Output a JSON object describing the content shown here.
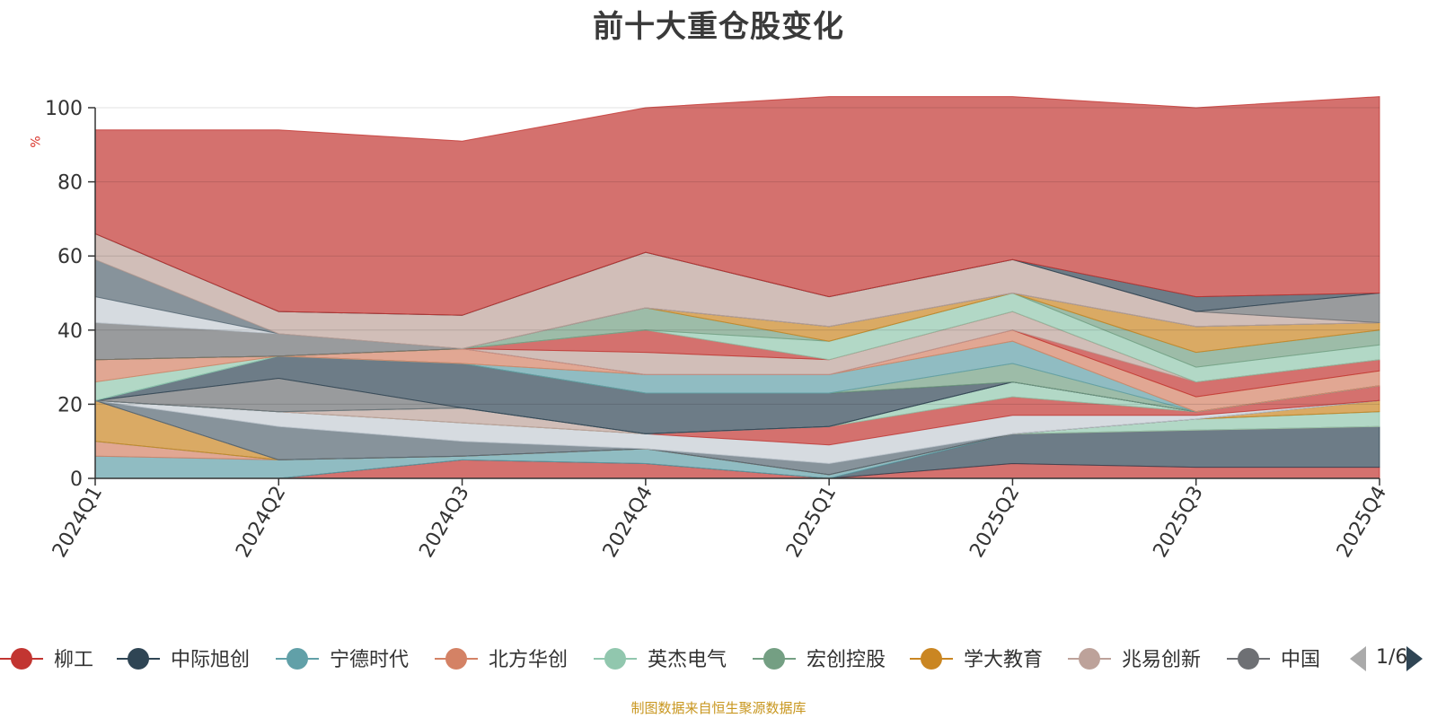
{
  "chart_data": {
    "type": "area",
    "title": "前十大重仓股变化",
    "ylabel": "%",
    "ylim": [
      0,
      100
    ],
    "y_ticks": [
      0,
      20,
      40,
      60,
      80,
      100
    ],
    "x": [
      "2024Q1",
      "2024Q2",
      "2024Q3",
      "2024Q4",
      "2025Q1",
      "2025Q2",
      "2025Q3",
      "2025Q4"
    ],
    "grid": true,
    "legend_position": "bottom",
    "series": [
      {
        "name": "柳工",
        "color": "#c23531",
        "values": [
          0,
          0,
          5,
          4,
          0,
          4,
          3,
          3
        ]
      },
      {
        "name": "中际旭创",
        "color": "#2f4554",
        "values": [
          0,
          0,
          0,
          0,
          0,
          8,
          10,
          11
        ]
      },
      {
        "name": "宁德时代",
        "color": "#61a0a8",
        "values": [
          6,
          5,
          1,
          4,
          1,
          0,
          0,
          0
        ]
      },
      {
        "name": "北方华创",
        "color": "#d48265",
        "values": [
          4,
          0,
          0,
          0,
          0,
          0,
          0,
          0
        ]
      },
      {
        "name": "英杰电气",
        "color": "#91c7ae",
        "values": [
          0,
          0,
          0,
          0,
          0,
          0,
          3,
          4
        ]
      },
      {
        "name": "宏创控股",
        "color": "#749f83",
        "values": [
          0,
          0,
          0,
          0,
          0,
          0,
          0,
          0
        ]
      },
      {
        "name": "学大教育",
        "color": "#ca8622",
        "values": [
          11,
          0,
          0,
          0,
          0,
          0,
          0,
          3
        ]
      },
      {
        "name": "兆易创新",
        "color": "#bda29a",
        "values": [
          0,
          0,
          0,
          0,
          0,
          0,
          0,
          0
        ]
      },
      {
        "name": "中国",
        "color": "#6e7074",
        "values": [
          0,
          0,
          0,
          0,
          0,
          0,
          0,
          0
        ]
      },
      {
        "name": "",
        "color": "#546570",
        "values": [
          0,
          9,
          4,
          0,
          3,
          0,
          0,
          0
        ]
      },
      {
        "name": "",
        "color": "#c4ccd3",
        "values": [
          0,
          4,
          5,
          4,
          5,
          5,
          1,
          0
        ]
      },
      {
        "name": "",
        "color": "#c23531",
        "values": [
          0,
          0,
          0,
          0,
          5,
          5,
          1,
          4
        ]
      },
      {
        "name": "",
        "color": "#91c7ae",
        "values": [
          0,
          0,
          0,
          0,
          0,
          4,
          0,
          0
        ]
      },
      {
        "name": "",
        "color": "#bda29a",
        "values": [
          0,
          0,
          4,
          0,
          0,
          0,
          0,
          0
        ]
      },
      {
        "name": "",
        "color": "#6e7074",
        "values": [
          0,
          0,
          0,
          0,
          0,
          0,
          0,
          0
        ]
      },
      {
        "name": "",
        "color": "#61a0a8",
        "values": [
          0,
          0,
          0,
          0,
          0,
          0,
          0,
          0
        ]
      },
      {
        "name": "",
        "color": "#6e7074",
        "values": [
          0,
          9,
          0,
          0,
          0,
          0,
          0,
          0
        ]
      },
      {
        "name": "",
        "color": "#2f4554",
        "values": [
          0,
          6,
          12,
          11,
          9,
          0,
          0,
          0
        ]
      },
      {
        "name": "",
        "color": "#749f83",
        "values": [
          0,
          0,
          0,
          0,
          0,
          5,
          0,
          0
        ]
      },
      {
        "name": "",
        "color": "#61a0a8",
        "values": [
          0,
          0,
          0,
          5,
          5,
          6,
          0,
          0
        ]
      },
      {
        "name": "",
        "color": "#91c7ae",
        "values": [
          5,
          0,
          0,
          0,
          0,
          0,
          0,
          0
        ]
      },
      {
        "name": "",
        "color": "#d48265",
        "values": [
          6,
          0,
          4,
          0,
          0,
          3,
          4,
          4
        ]
      },
      {
        "name": "",
        "color": "#c23531",
        "values": [
          0,
          0,
          0,
          0,
          0,
          0,
          4,
          3
        ]
      },
      {
        "name": "",
        "color": "#bda29a",
        "values": [
          0,
          0,
          0,
          6,
          4,
          5,
          0,
          0
        ]
      },
      {
        "name": "",
        "color": "#c23531",
        "values": [
          0,
          0,
          0,
          6,
          0,
          0,
          0,
          0
        ]
      },
      {
        "name": "",
        "color": "#91c7ae",
        "values": [
          0,
          0,
          0,
          0,
          5,
          5,
          4,
          4
        ]
      },
      {
        "name": "",
        "color": "#749f83",
        "values": [
          0,
          0,
          0,
          6,
          0,
          0,
          4,
          4
        ]
      },
      {
        "name": "",
        "color": "#ca8622",
        "values": [
          0,
          0,
          0,
          0,
          4,
          0,
          7,
          2
        ]
      },
      {
        "name": "",
        "color": "#6e7074",
        "values": [
          10,
          6,
          0,
          0,
          0,
          0,
          0,
          0
        ]
      },
      {
        "name": "",
        "color": "#c4ccd3",
        "values": [
          7,
          0,
          0,
          0,
          0,
          0,
          0,
          0
        ]
      },
      {
        "name": "",
        "color": "#546570",
        "values": [
          10,
          0,
          0,
          0,
          0,
          0,
          0,
          0
        ]
      },
      {
        "name": "",
        "color": "#bda29a",
        "values": [
          7,
          6,
          9,
          15,
          8,
          9,
          4,
          0
        ]
      },
      {
        "name": "",
        "color": "#6e7074",
        "values": [
          0,
          0,
          0,
          0,
          0,
          0,
          0,
          8
        ]
      },
      {
        "name": "",
        "color": "#2f4554",
        "values": [
          0,
          0,
          0,
          0,
          0,
          0,
          4,
          0
        ]
      },
      {
        "name": "",
        "color": "#c23531",
        "values": [
          28,
          49,
          47,
          39,
          54,
          44,
          51,
          53
        ]
      }
    ]
  },
  "legend": {
    "items": [
      {
        "name": "柳工",
        "color": "#c23531"
      },
      {
        "name": "中际旭创",
        "color": "#2f4554"
      },
      {
        "name": "宁德时代",
        "color": "#61a0a8"
      },
      {
        "name": "北方华创",
        "color": "#d48265"
      },
      {
        "name": "英杰电气",
        "color": "#91c7ae"
      },
      {
        "name": "宏创控股",
        "color": "#749f83"
      },
      {
        "name": "学大教育",
        "color": "#ca8622"
      },
      {
        "name": "兆易创新",
        "color": "#bda29a"
      },
      {
        "name": "中国",
        "color": "#6e7074"
      }
    ],
    "page_label": "1/6"
  },
  "footer": "制图数据来自恒生聚源数据库"
}
